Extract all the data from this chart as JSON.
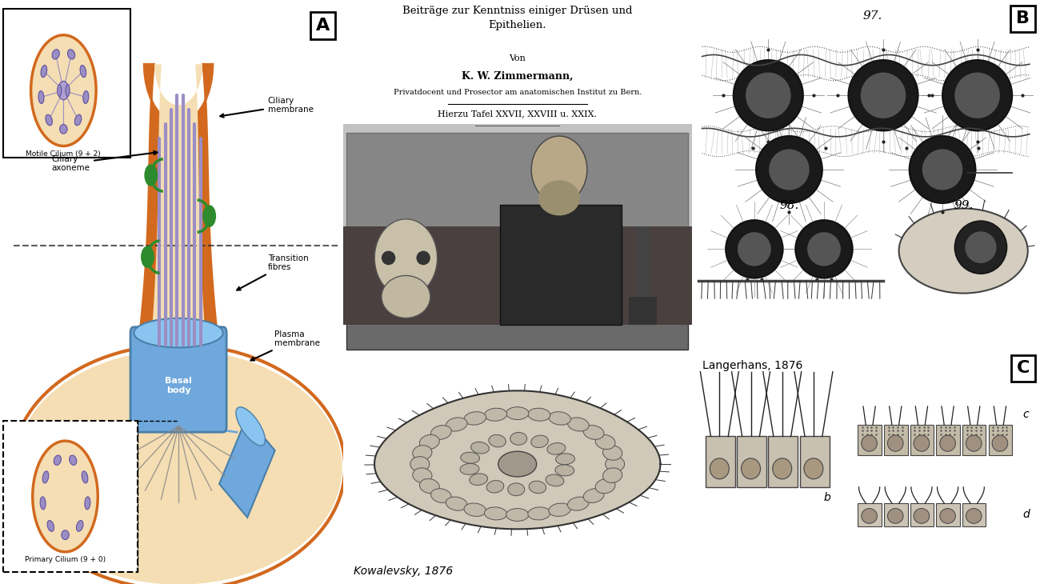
{
  "fig_width": 13.0,
  "fig_height": 7.3,
  "bg_color": "#ffffff",
  "panel_A_bg": "#F5DEB3",
  "cilium_outer_color": "#D2691E",
  "cilium_inner_color": "#F5DEB3",
  "axoneme_color": "#9B8EC4",
  "basal_body_color": "#6FA8DC",
  "transition_fiber_color": "#888888",
  "green_connector_color": "#2D8B2D",
  "motile_circle_fill": "#F5DEB3",
  "motile_circle_border": "#D2691E",
  "primary_circle_fill": "#F5DEB3",
  "primary_circle_border": "#D2691E",
  "label_A": "A",
  "label_B": "B",
  "label_C": "C",
  "motile_label": "Motile Cilium (9 + 2)",
  "primary_label": "Primary Cilium (9 + 0)",
  "ciliary_membrane_label": "Ciliary\nmembrane",
  "ciliary_axoneme_label": "Ciliary\naxoneme",
  "transition_fibres_label": "Transition\nfibres",
  "plasma_membrane_label": "Plasma\nmembrane",
  "basal_body_label": "Basal\nbody",
  "zimmermann_title": "Beiträge zur Kenntniss einiger Drüsen und\nEpithelien.",
  "zimmermann_subtitle": "Von",
  "zimmermann_author": "K. W. Zimmermann,",
  "zimmermann_inst": "Privatdocent und Prosector am anatomischen Institut zu Bern.",
  "zimmermann_tafel": "Hierzu Tafel XXVII, XXVIII u. XXIX.",
  "kowalevsky_label": "Kowalevsky, 1876",
  "langerhans_label": "Langerhans, 1876",
  "panel_border_color": "#000000",
  "dashed_line_color": "#333333"
}
